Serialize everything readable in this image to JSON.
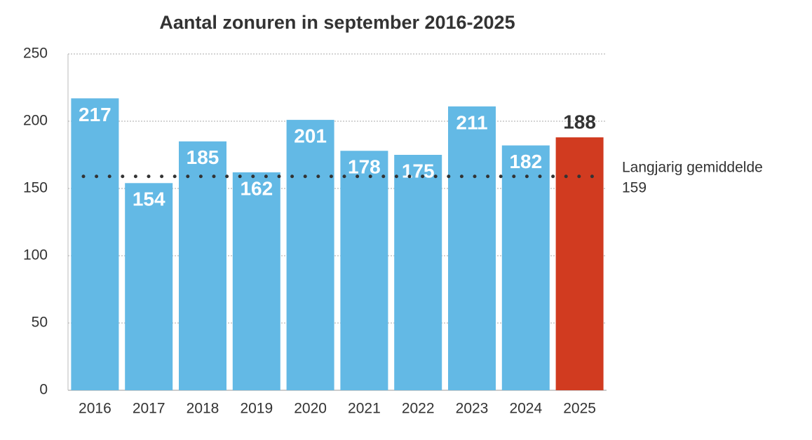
{
  "chart_data": {
    "type": "bar",
    "title": "Aantal zonuren in september 2016-2025",
    "categories": [
      "2016",
      "2017",
      "2018",
      "2019",
      "2020",
      "2021",
      "2022",
      "2023",
      "2024",
      "2025"
    ],
    "values": [
      217,
      154,
      185,
      162,
      201,
      178,
      175,
      211,
      182,
      188
    ],
    "colors": [
      "#63b9e5",
      "#63b9e5",
      "#63b9e5",
      "#63b9e5",
      "#63b9e5",
      "#63b9e5",
      "#63b9e5",
      "#63b9e5",
      "#63b9e5",
      "#d13b20"
    ],
    "ylim": [
      0,
      250
    ],
    "yticks": [
      0,
      50,
      100,
      150,
      200,
      250
    ],
    "grid": true,
    "reference_line": {
      "label": "Langjarig gemiddelde",
      "value": 159
    }
  }
}
